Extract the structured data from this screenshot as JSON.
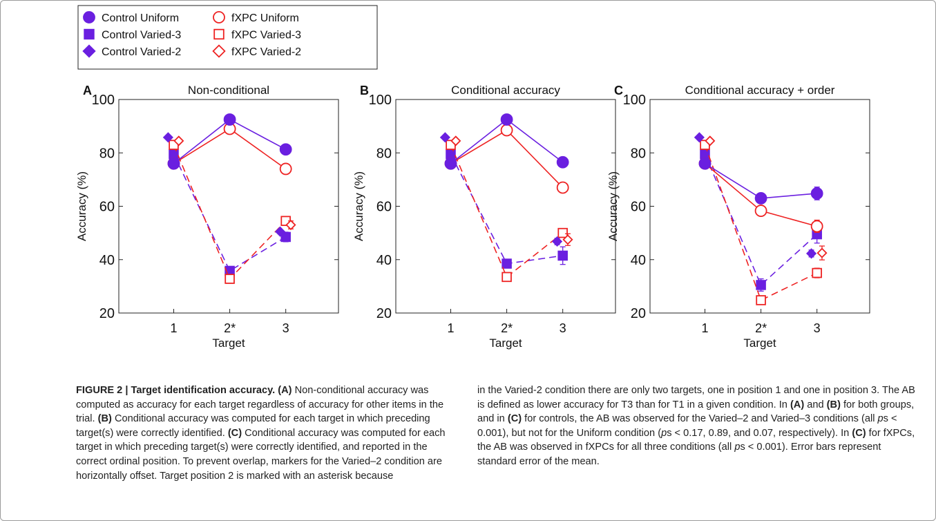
{
  "legend": {
    "entries": [
      {
        "label": "Control Uniform",
        "group": "control",
        "marker": "circle",
        "filled": true
      },
      {
        "label": "fXPC Uniform",
        "group": "fxpc",
        "marker": "circle",
        "filled": false
      },
      {
        "label": "Control Varied-3",
        "group": "control",
        "marker": "square",
        "filled": true
      },
      {
        "label": "fXPC Varied-3",
        "group": "fxpc",
        "marker": "square",
        "filled": false
      },
      {
        "label": "Control Varied-2",
        "group": "control",
        "marker": "diamond",
        "filled": true
      },
      {
        "label": "fXPC Varied-2",
        "group": "fxpc",
        "marker": "diamond",
        "filled": false
      }
    ]
  },
  "colors": {
    "control": "#6a1fe0",
    "fxpc": "#ee2222"
  },
  "chart_data": [
    {
      "type": "line",
      "panel_letter": "A",
      "title": "Non-conditional",
      "xlabel": "Target",
      "ylabel": "Accuracy (%)",
      "x_ticks": [
        "1",
        "2*",
        "3"
      ],
      "ylim": [
        20,
        100
      ],
      "y_ticks": [
        20,
        40,
        60,
        80,
        100
      ],
      "series": [
        {
          "name": "Control Uniform",
          "x": [
            1,
            2,
            3
          ],
          "y": [
            76,
            92.5,
            81.3
          ],
          "err": [
            0,
            0,
            0
          ]
        },
        {
          "name": "fXPC Uniform",
          "x": [
            1,
            2,
            3
          ],
          "y": [
            76,
            89,
            74
          ],
          "err": [
            0,
            0,
            0
          ]
        },
        {
          "name": "Control Varied-3",
          "x": [
            1,
            2,
            3
          ],
          "y": [
            79.5,
            35.8,
            48.5
          ],
          "err": [
            0,
            0.8,
            1.8
          ]
        },
        {
          "name": "fXPC Varied-3",
          "x": [
            1,
            2,
            3
          ],
          "y": [
            83,
            32.8,
            54.5
          ],
          "err": [
            0,
            0,
            0
          ]
        },
        {
          "name": "Control Varied-2",
          "x": [
            1,
            3
          ],
          "y": [
            85.8,
            50.5
          ],
          "err": [
            0,
            0
          ]
        },
        {
          "name": "fXPC Varied-2",
          "x": [
            1,
            3
          ],
          "y": [
            84.5,
            53
          ],
          "err": [
            0,
            1.5
          ]
        }
      ]
    },
    {
      "type": "line",
      "panel_letter": "B",
      "title": "Conditional accuracy",
      "xlabel": "Target",
      "ylabel": "Accuracy (%)",
      "x_ticks": [
        "1",
        "2*",
        "3"
      ],
      "ylim": [
        20,
        100
      ],
      "y_ticks": [
        20,
        40,
        60,
        80,
        100
      ],
      "series": [
        {
          "name": "Control Uniform",
          "x": [
            1,
            2,
            3
          ],
          "y": [
            76,
            92.5,
            76.5
          ],
          "err": [
            0,
            0,
            1.3
          ]
        },
        {
          "name": "fXPC Uniform",
          "x": [
            1,
            2,
            3
          ],
          "y": [
            76,
            88.5,
            67
          ],
          "err": [
            0,
            0,
            1.8
          ]
        },
        {
          "name": "Control Varied-3",
          "x": [
            1,
            2,
            3
          ],
          "y": [
            79.5,
            38.5,
            41.5
          ],
          "err": [
            0,
            1.3,
            3.3
          ]
        },
        {
          "name": "fXPC Varied-3",
          "x": [
            1,
            2,
            3
          ],
          "y": [
            83,
            33.5,
            50
          ],
          "err": [
            0,
            0,
            1.5
          ]
        },
        {
          "name": "Control Varied-2",
          "x": [
            1,
            3
          ],
          "y": [
            85.8,
            46.8
          ],
          "err": [
            0,
            1.2
          ]
        },
        {
          "name": "fXPC Varied-2",
          "x": [
            1,
            3
          ],
          "y": [
            84.5,
            47.5
          ],
          "err": [
            0,
            2.2
          ]
        }
      ]
    },
    {
      "type": "line",
      "panel_letter": "C",
      "title": "Conditional accuracy + order",
      "xlabel": "Target",
      "ylabel": "Accuracy (%)",
      "x_ticks": [
        "1",
        "2*",
        "3"
      ],
      "ylim": [
        20,
        100
      ],
      "y_ticks": [
        20,
        40,
        60,
        80,
        100
      ],
      "series": [
        {
          "name": "Control Uniform",
          "x": [
            1,
            2,
            3
          ],
          "y": [
            76,
            63,
            64.8
          ],
          "err": [
            0,
            0,
            2.4
          ]
        },
        {
          "name": "fXPC Uniform",
          "x": [
            1,
            2,
            3
          ],
          "y": [
            76,
            58.3,
            52.5
          ],
          "err": [
            0,
            0,
            2.3
          ]
        },
        {
          "name": "Control Varied-3",
          "x": [
            1,
            2,
            3
          ],
          "y": [
            79.5,
            30.5,
            49.5
          ],
          "err": [
            0,
            2.3,
            3.3
          ]
        },
        {
          "name": "fXPC Varied-3",
          "x": [
            1,
            2,
            3
          ],
          "y": [
            83,
            24.8,
            35
          ],
          "err": [
            0,
            1.3,
            1.8
          ]
        },
        {
          "name": "Control Varied-2",
          "x": [
            1,
            3
          ],
          "y": [
            85.8,
            42.3
          ],
          "err": [
            0,
            1.3
          ]
        },
        {
          "name": "fXPC Varied-2",
          "x": [
            1,
            3
          ],
          "y": [
            84.5,
            42.5
          ],
          "err": [
            0,
            2.6
          ]
        }
      ]
    }
  ],
  "caption": {
    "title": "FIGURE 2 | Target identification accuracy.",
    "col1": [
      {
        "t": " "
      },
      {
        "t": "(A)",
        "b": true
      },
      {
        "t": " Non-conditional accuracy was computed as accuracy for each target regardless of accuracy for other items in the trial. "
      },
      {
        "t": "(B)",
        "b": true
      },
      {
        "t": " Conditional accuracy was computed for each target in which preceding target(s) were correctly identified. "
      },
      {
        "t": "(C)",
        "b": true
      },
      {
        "t": " Conditional accuracy was computed for each target in which preceding target(s) were correctly identified, and reported in the correct ordinal position. To prevent overlap, markers for the Varied–2 condition are horizontally offset. Target position 2 is marked with an asterisk because"
      }
    ],
    "col2": [
      {
        "t": "in the Varied-2 condition there are only two targets, one in position 1 and one in position 3. The AB is defined as lower accuracy for T3 than for T1 in a given condition. In "
      },
      {
        "t": "(A)",
        "b": true
      },
      {
        "t": " and "
      },
      {
        "t": "(B)",
        "b": true
      },
      {
        "t": " for both groups, and in "
      },
      {
        "t": "(C)",
        "b": true
      },
      {
        "t": " for controls, the AB was observed for the Varied–2 and Varied–3 conditions (all "
      },
      {
        "t": "p",
        "i": true
      },
      {
        "t": "s < 0.001), but not for the Uniform condition ("
      },
      {
        "t": "p",
        "i": true
      },
      {
        "t": "s < 0.17, 0.89, and 0.07, respectively). In "
      },
      {
        "t": "(C)",
        "b": true
      },
      {
        "t": " for fXPCs, the AB was observed in fXPCs for all three conditions (all "
      },
      {
        "t": "p",
        "i": true
      },
      {
        "t": "s < 0.001). Error bars represent standard error of the mean."
      }
    ]
  }
}
